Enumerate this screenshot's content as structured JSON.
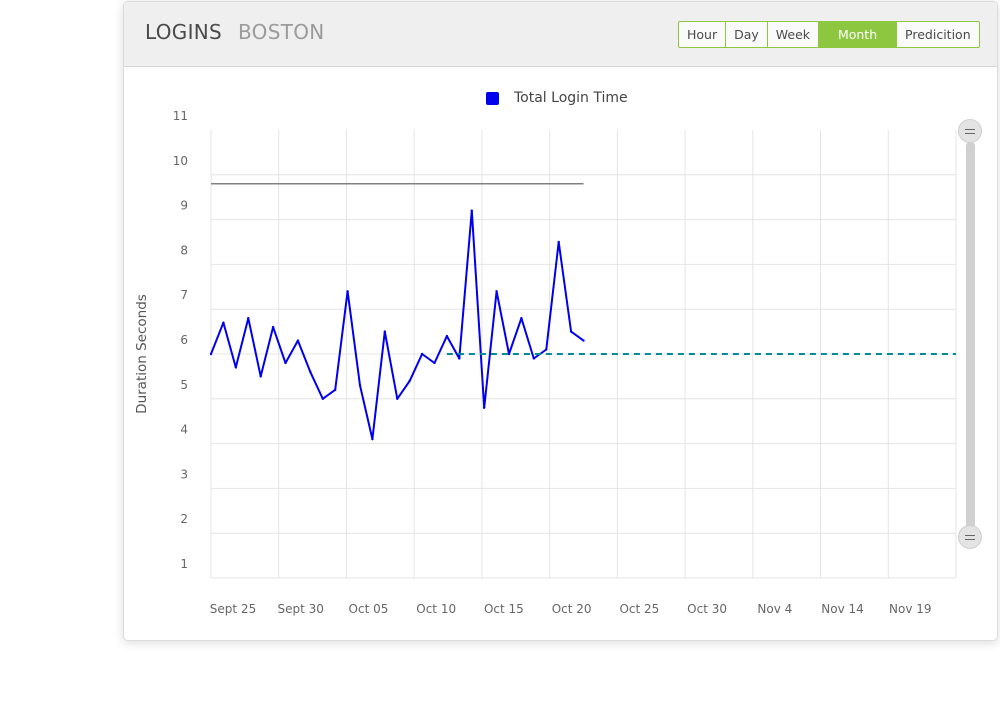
{
  "header": {
    "title": "LOGINS",
    "subtitle": "BOSTON",
    "ranges": [
      {
        "label": "Hour",
        "active": false
      },
      {
        "label": "Day",
        "active": false
      },
      {
        "label": "Week",
        "active": false
      },
      {
        "label": "Month",
        "active": true
      },
      {
        "label": "Predicition",
        "active": false
      }
    ]
  },
  "scrollbar": {
    "top_handle_icon": "grip-lines-icon",
    "bottom_handle_icon": "grip-lines-icon"
  },
  "colors": {
    "accent": "#8dc63f",
    "series": "#0000ee",
    "prediction": "#008b9a",
    "threshold": "#808080",
    "grid": "#e4e4e4"
  },
  "chart_data": {
    "type": "line",
    "title": "",
    "legend": {
      "entries": [
        "Total Login Time"
      ],
      "placement": "top-center"
    },
    "ylabel": "Duration Seconds",
    "xlabel": "",
    "ylim": [
      1,
      11
    ],
    "yticks": [
      1,
      2,
      3,
      4,
      5,
      6,
      7,
      8,
      9,
      10,
      11
    ],
    "xlim": [
      "2017-09-25",
      "2017-11-24"
    ],
    "xticks": [
      "Sept 25",
      "Sept 30",
      "Oct 05",
      "Oct 10",
      "Oct 15",
      "Oct 20",
      "Oct 25",
      "Oct 30",
      "Nov 4",
      "Nov 14",
      "Nov 19"
    ],
    "grid": true,
    "series": [
      {
        "name": "Total Login Time",
        "style": "solid",
        "x": [
          "2017-09-25",
          "2017-09-26",
          "2017-09-27",
          "2017-09-28",
          "2017-09-29",
          "2017-09-30",
          "2017-10-01",
          "2017-10-02",
          "2017-10-03",
          "2017-10-04",
          "2017-10-05",
          "2017-10-06",
          "2017-10-07",
          "2017-10-08",
          "2017-10-09",
          "2017-10-10",
          "2017-10-11",
          "2017-10-12",
          "2017-10-13",
          "2017-10-14",
          "2017-10-15",
          "2017-10-16",
          "2017-10-17",
          "2017-10-18",
          "2017-10-19",
          "2017-10-20",
          "2017-10-21",
          "2017-10-22",
          "2017-10-23",
          "2017-10-24",
          "2017-10-25"
        ],
        "values": [
          6.0,
          6.7,
          5.7,
          6.8,
          5.5,
          6.6,
          5.8,
          6.3,
          5.6,
          5.0,
          5.2,
          7.4,
          5.3,
          4.1,
          6.5,
          5.0,
          5.4,
          6.0,
          5.8,
          6.4,
          5.9,
          9.2,
          4.8,
          7.4,
          6.0,
          6.8,
          5.9,
          6.1,
          8.5,
          6.5,
          6.3
        ]
      },
      {
        "name": "",
        "style": "dashed",
        "x": [
          "2017-10-14",
          "2017-11-24"
        ],
        "values": [
          6.0,
          6.0
        ]
      },
      {
        "name": "",
        "style": "solid",
        "x": [
          "2017-09-25",
          "2017-10-25"
        ],
        "values": [
          9.8,
          9.8
        ]
      }
    ]
  }
}
